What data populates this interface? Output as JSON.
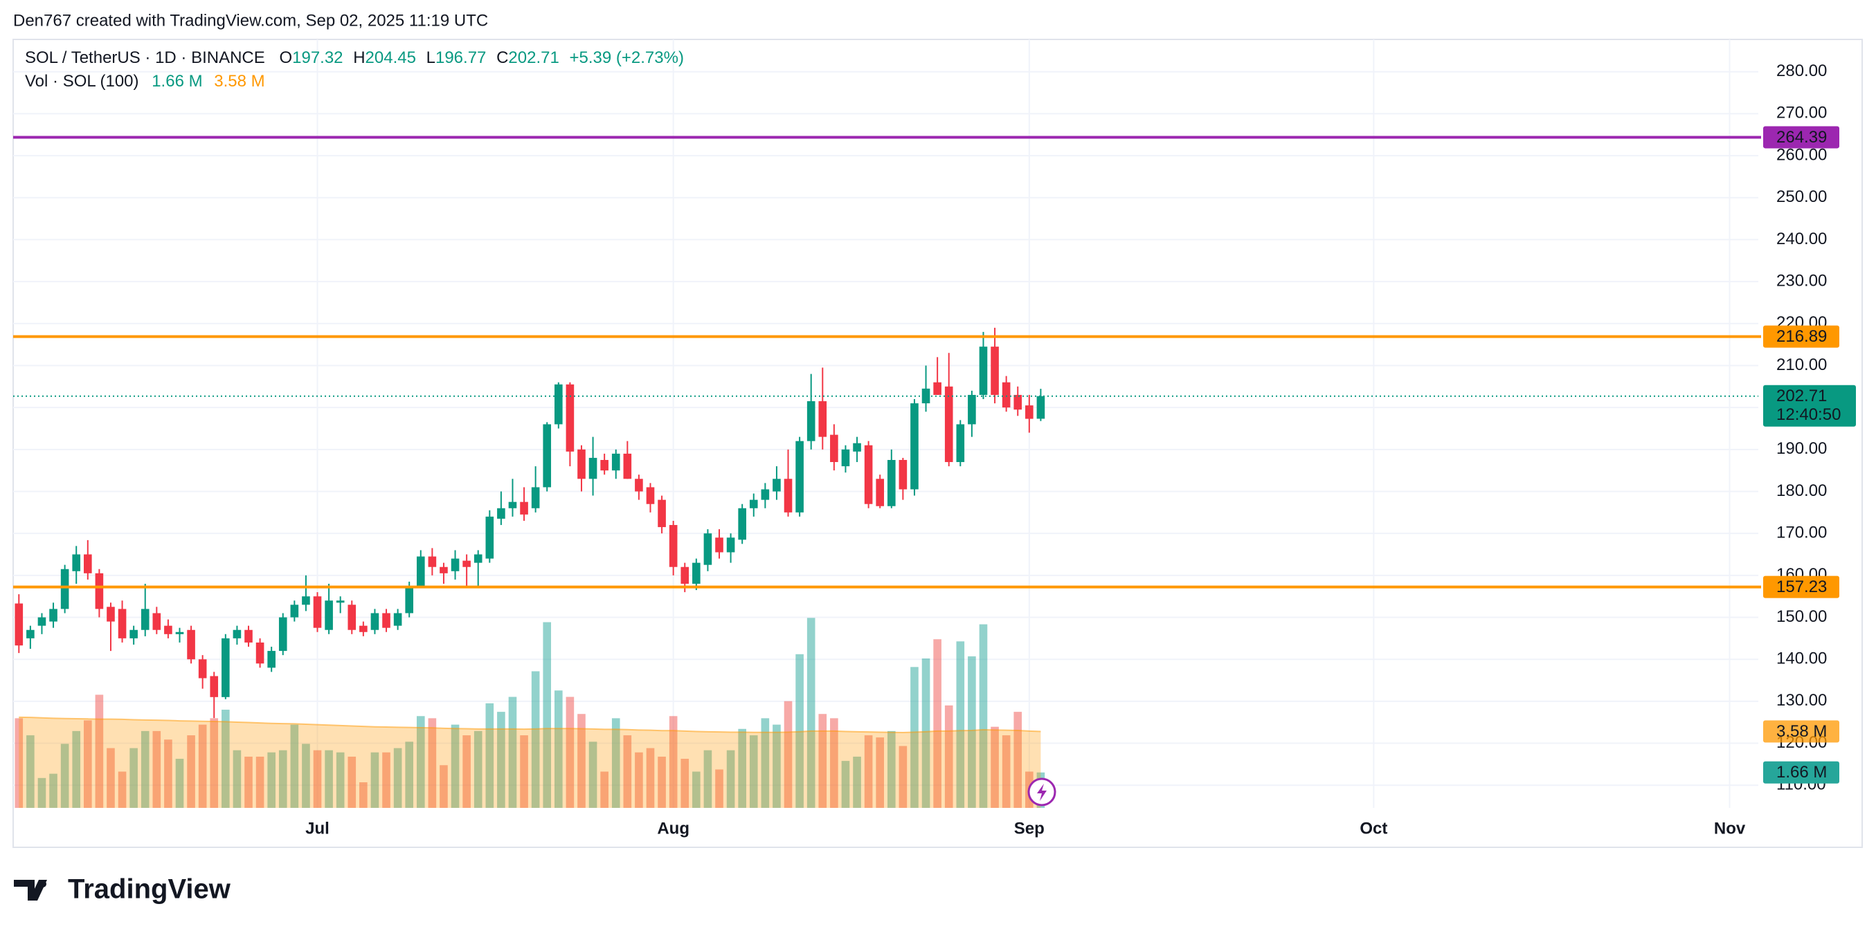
{
  "chart_data": {
    "type": "candlestick",
    "credit": "Den767 created with TradingView.com, Sep 02, 2025 11:19 UTC",
    "title": "SOL / TetherUS · 1D · BINANCE",
    "legend_keys": {
      "open": "O",
      "high": "H",
      "low": "L",
      "close": "C"
    },
    "change": "+5.39 (+2.73%)",
    "volume_title": "Vol · SOL (100)",
    "volume_last_label": "1.66 M",
    "volume_ma_label": "3.58 M",
    "countdown": "12:40:50",
    "brand": "TradingView",
    "up_color": "#089981",
    "down_color": "#f23645",
    "volume_up_color": "rgba(38,166,154,0.5)",
    "volume_down_color": "rgba(239,83,80,0.5)",
    "volume_ma_color": "#ff9800",
    "open": [
      153.3,
      145,
      148,
      149,
      152,
      161,
      165,
      160.5,
      152.5,
      152,
      145,
      147,
      151,
      148,
      146,
      147,
      140,
      136,
      131,
      145,
      147,
      144,
      138,
      142,
      150,
      153,
      155,
      147,
      153.5,
      153,
      148,
      147,
      151,
      148,
      151,
      157.5,
      164.5,
      162,
      161,
      163.5,
      163,
      164,
      173.5,
      176,
      177.5,
      176,
      181,
      196,
      205.5,
      190,
      183,
      187.5,
      185,
      189,
      183,
      181,
      178,
      172,
      162,
      158,
      162.5,
      169,
      165.5,
      168.5,
      176,
      178,
      180,
      183,
      175,
      192,
      201.5,
      193.5,
      186,
      189.5,
      191,
      183,
      176.5,
      187.5,
      180.5,
      201,
      206,
      205,
      187,
      196,
      203,
      214.5,
      206,
      203,
      200.5,
      197.32
    ],
    "high": [
      155.5,
      148,
      151,
      153.5,
      162.5,
      167,
      168.4,
      161.5,
      153.5,
      154,
      148,
      158,
      152.5,
      149.5,
      147.5,
      148,
      141,
      137,
      146,
      148,
      148,
      145,
      143,
      151,
      154,
      160,
      156,
      158,
      155,
      154,
      149,
      152,
      152,
      152,
      158.5,
      166,
      166.5,
      163,
      166,
      165,
      166,
      175.5,
      180,
      183,
      181,
      186,
      196.5,
      206,
      206,
      191,
      193,
      189,
      190,
      192,
      184,
      182,
      179,
      173,
      163,
      164,
      171,
      171,
      170,
      177,
      179.5,
      182,
      186,
      190,
      193,
      208,
      209.5,
      196,
      191,
      193,
      192,
      184,
      190,
      188,
      202,
      210,
      212,
      213,
      197,
      204,
      218,
      219,
      207.5,
      205,
      203,
      204.45
    ],
    "low": [
      141.5,
      142.5,
      146,
      147.5,
      151,
      158,
      159,
      150,
      142,
      144,
      143.5,
      145.5,
      146,
      145,
      144,
      139,
      133,
      126,
      130.5,
      143.5,
      143,
      138,
      137,
      141,
      149,
      151.5,
      146.5,
      146,
      151,
      146,
      145.5,
      146,
      146.5,
      147,
      150,
      157,
      160,
      158,
      159,
      157,
      157,
      163,
      172,
      174,
      173,
      175,
      180,
      195,
      186,
      180,
      179,
      184,
      183,
      183,
      178,
      175,
      170,
      160,
      156,
      156.5,
      161,
      164,
      163,
      167.5,
      174,
      176,
      178,
      174,
      174,
      190,
      190,
      185,
      184.5,
      187,
      176,
      176,
      176,
      178,
      179,
      199,
      203,
      186,
      186,
      193,
      202,
      201,
      199,
      198,
      194,
      196.77
    ],
    "close": [
      143.3,
      147,
      150,
      152,
      161.5,
      165,
      160.5,
      152,
      149,
      145,
      147,
      152,
      147,
      146,
      146.5,
      140,
      135.5,
      131,
      145,
      147,
      144,
      139,
      142,
      150,
      153,
      155,
      147.5,
      154,
      154,
      147,
      146.5,
      151,
      147.5,
      151,
      157.5,
      164.5,
      162,
      160.5,
      164,
      162,
      165,
      174,
      176,
      177.5,
      174.5,
      181,
      196,
      205.5,
      189.5,
      183,
      188,
      185,
      189,
      183,
      180,
      177,
      171.5,
      162,
      158,
      163,
      170,
      165.5,
      169,
      176,
      178,
      180.5,
      183,
      175,
      192,
      201.5,
      193,
      187,
      190,
      191.5,
      177,
      176.5,
      187.5,
      180.5,
      201,
      204.5,
      203,
      187,
      196,
      203,
      214.5,
      203,
      200,
      199.5,
      197.3,
      202.71
    ],
    "volume": [
      4.2,
      3.4,
      1.4,
      1.6,
      3.0,
      3.6,
      4.1,
      5.3,
      2.8,
      1.7,
      2.8,
      3.6,
      3.6,
      3.2,
      2.3,
      3.4,
      3.9,
      4.2,
      4.6,
      2.7,
      2.4,
      2.4,
      2.6,
      2.7,
      3.9,
      3.0,
      2.7,
      2.7,
      2.6,
      2.4,
      1.2,
      2.6,
      2.6,
      2.8,
      3.1,
      4.3,
      4.2,
      2.0,
      3.9,
      3.4,
      3.6,
      4.9,
      4.5,
      5.2,
      3.4,
      6.4,
      8.7,
      5.5,
      5.2,
      4.4,
      3.1,
      1.7,
      4.2,
      3.4,
      2.6,
      2.8,
      2.4,
      4.3,
      2.3,
      1.7,
      2.7,
      1.8,
      2.7,
      3.7,
      3.4,
      4.2,
      3.9,
      5.0,
      7.2,
      8.9,
      4.4,
      4.2,
      2.2,
      2.4,
      3.4,
      3.3,
      3.6,
      2.9,
      6.6,
      7.0,
      7.9,
      4.8,
      7.8,
      7.1,
      8.6,
      3.8,
      3.4,
      4.5,
      1.7,
      1.66
    ],
    "volume_ma": [
      4.25,
      4.24,
      4.22,
      4.2,
      4.19,
      4.18,
      4.17,
      4.16,
      4.16,
      4.15,
      4.13,
      4.12,
      4.11,
      4.1,
      4.08,
      4.07,
      4.06,
      4.05,
      4.04,
      4.02,
      4.0,
      3.98,
      3.96,
      3.95,
      3.94,
      3.92,
      3.9,
      3.88,
      3.86,
      3.84,
      3.82,
      3.8,
      3.79,
      3.78,
      3.77,
      3.76,
      3.75,
      3.73,
      3.72,
      3.71,
      3.7,
      3.7,
      3.7,
      3.7,
      3.69,
      3.7,
      3.72,
      3.72,
      3.72,
      3.71,
      3.7,
      3.68,
      3.68,
      3.67,
      3.65,
      3.64,
      3.62,
      3.62,
      3.6,
      3.58,
      3.57,
      3.56,
      3.55,
      3.55,
      3.54,
      3.54,
      3.54,
      3.55,
      3.57,
      3.6,
      3.6,
      3.6,
      3.58,
      3.57,
      3.56,
      3.55,
      3.54,
      3.53,
      3.55,
      3.57,
      3.6,
      3.6,
      3.62,
      3.63,
      3.66,
      3.65,
      3.64,
      3.63,
      3.6,
      3.58
    ],
    "volume_ylim": [
      0,
      36
    ],
    "levels": [
      {
        "value": 264.39,
        "color": "#9c27b0"
      },
      {
        "value": 216.89,
        "color": "#ff9800"
      },
      {
        "value": 157.23,
        "color": "#ff9800"
      }
    ],
    "xlim": [
      -0.5,
      151.5
    ],
    "xticks": [
      {
        "value": 26,
        "label": "Jul"
      },
      {
        "value": 57,
        "label": "Aug"
      },
      {
        "value": 88,
        "label": "Sep"
      },
      {
        "value": 118,
        "label": "Oct"
      },
      {
        "value": 149,
        "label": "Nov"
      }
    ],
    "ylim": [
      104.6,
      287.7
    ],
    "yticks": [
      {
        "value": 110,
        "label": "110.00"
      },
      {
        "value": 120,
        "label": "120.00"
      },
      {
        "value": 130,
        "label": "130.00"
      },
      {
        "value": 140,
        "label": "140.00"
      },
      {
        "value": 150,
        "label": "150.00"
      },
      {
        "value": 160,
        "label": "160.00"
      },
      {
        "value": 170,
        "label": "170.00"
      },
      {
        "value": 180,
        "label": "180.00"
      },
      {
        "value": 190,
        "label": "190.00"
      },
      {
        "value": 200,
        "label": "200.00"
      },
      {
        "value": 210,
        "label": "210.00"
      },
      {
        "value": 220,
        "label": "220.00"
      },
      {
        "value": 230,
        "label": "230.00"
      },
      {
        "value": 240,
        "label": "240.00"
      },
      {
        "value": 250,
        "label": "250.00"
      },
      {
        "value": 260,
        "label": "260.00"
      },
      {
        "value": 270,
        "label": "270.00"
      },
      {
        "value": 280,
        "label": "280.00"
      }
    ],
    "grid": true
  }
}
